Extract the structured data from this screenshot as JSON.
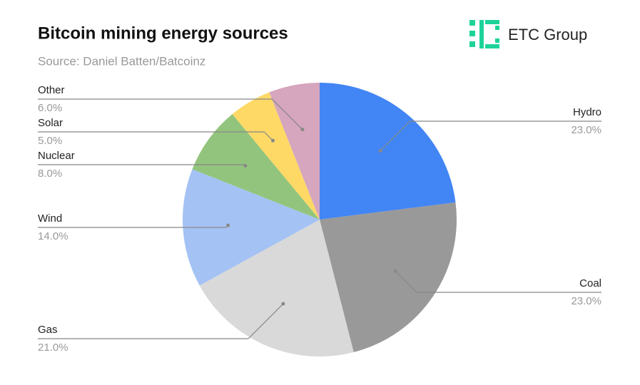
{
  "brand": "ETC Group",
  "chart_data": {
    "type": "pie",
    "title": "Bitcoin mining energy sources",
    "subtitle": "Source: Daniel Batten/Batcoinz",
    "categories": [
      "Hydro",
      "Coal",
      "Gas",
      "Wind",
      "Nuclear",
      "Solar",
      "Other"
    ],
    "values": [
      23,
      23,
      21,
      14,
      8,
      5,
      6
    ],
    "value_labels": [
      "23.0%",
      "23.0%",
      "21.0%",
      "14.0%",
      "8.0%",
      "5.0%",
      "6.0%"
    ],
    "colors": [
      "#4285f4",
      "#999999",
      "#d9d9d9",
      "#a4c2f4",
      "#93c47d",
      "#ffd966",
      "#d5a6bd"
    ]
  }
}
